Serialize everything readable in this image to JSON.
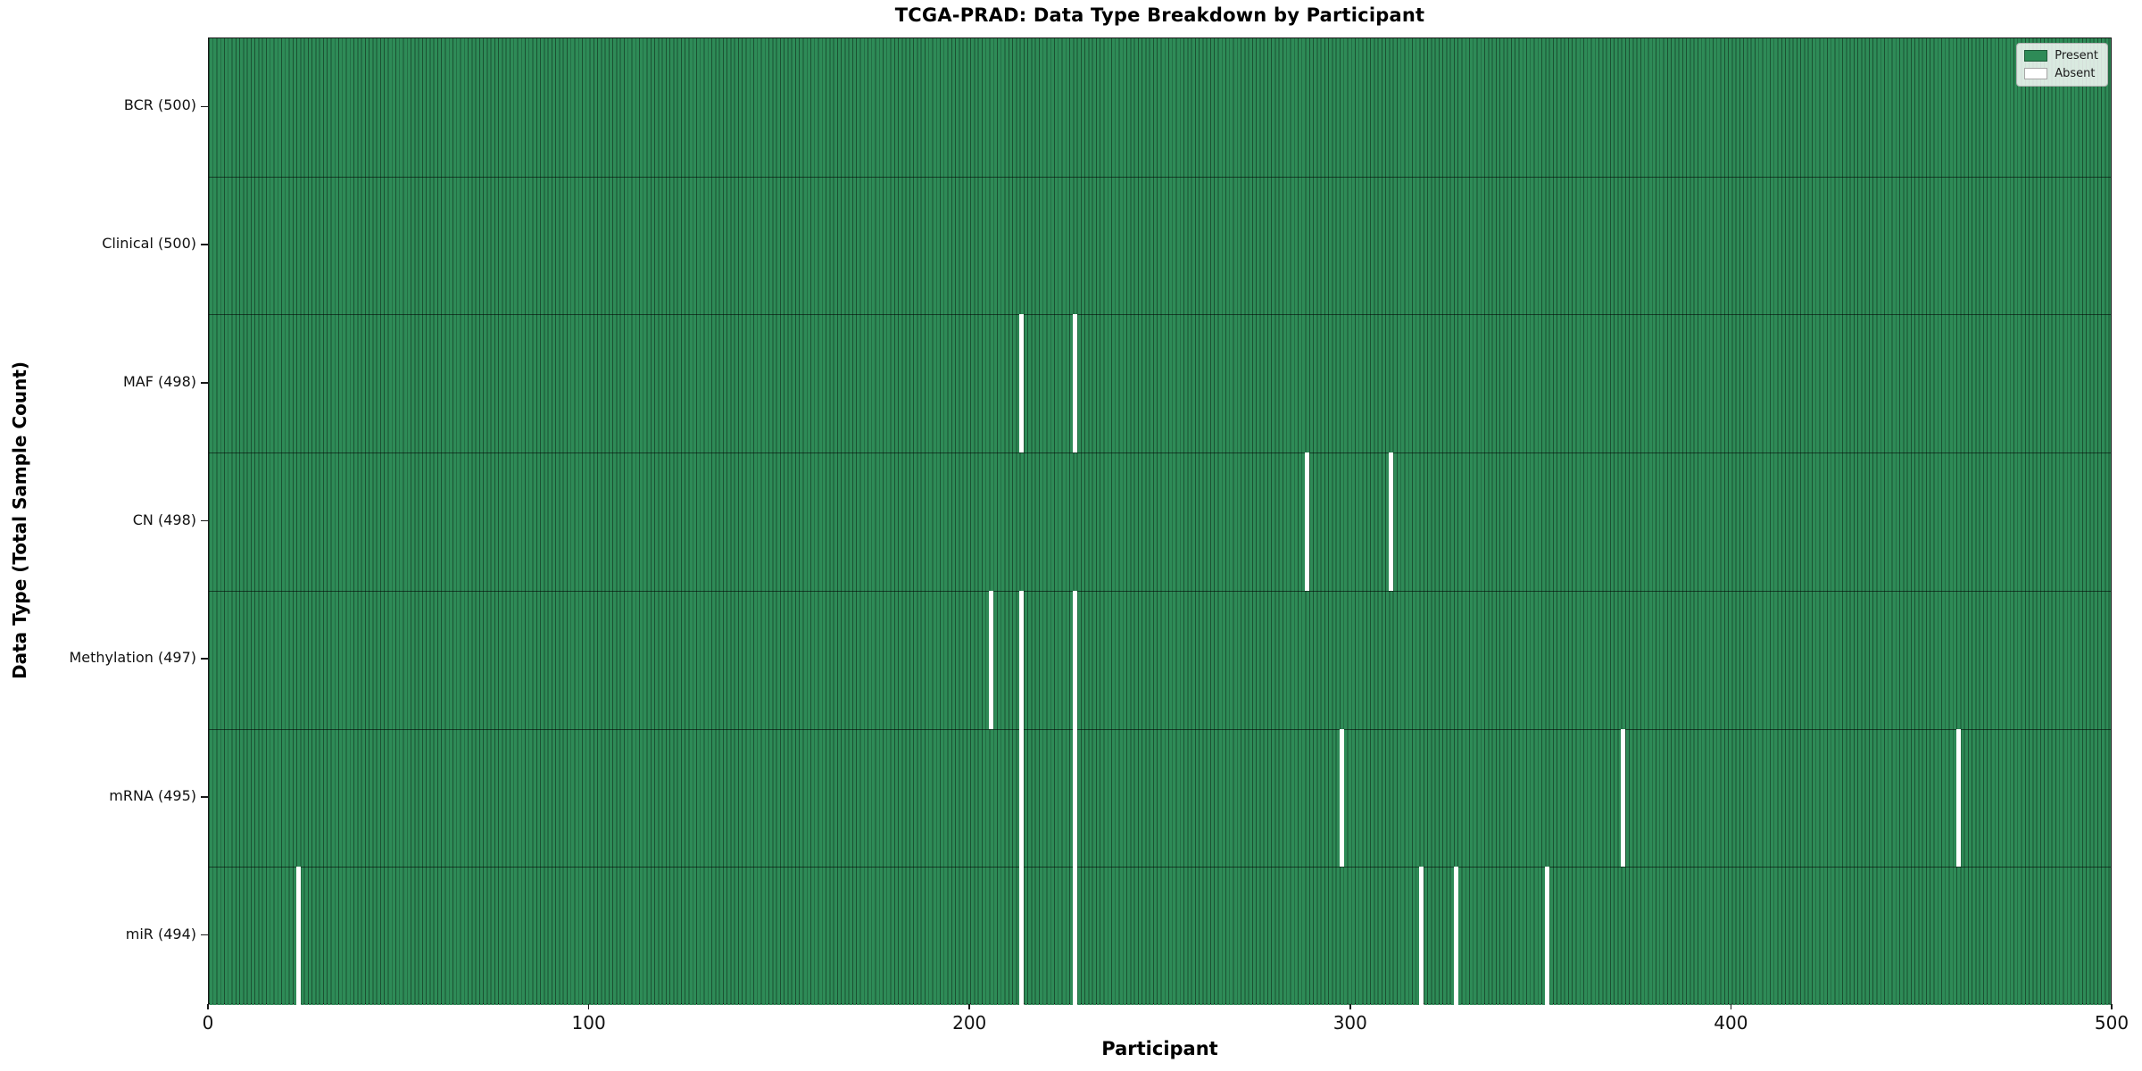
{
  "title": "TCGA-PRAD: Data Type Breakdown by Participant",
  "x_axis": {
    "label": "Participant",
    "range": [
      0,
      500
    ],
    "ticks": [
      0,
      100,
      200,
      300,
      400,
      500
    ]
  },
  "y_axis": {
    "label": "Data Type (Total Sample Count)"
  },
  "legend": {
    "entries": [
      {
        "label": "Present",
        "color": "#2e8b57"
      },
      {
        "label": "Absent",
        "color": "#ffffff"
      }
    ],
    "position": "upper-right"
  },
  "chart_data": {
    "type": "heatmap",
    "title": "TCGA-PRAD: Data Type Breakdown by Participant",
    "xlabel": "Participant",
    "ylabel": "Data Type (Total Sample Count)",
    "x_range": [
      0,
      500
    ],
    "x_ticks": [
      0,
      100,
      200,
      300,
      400,
      500
    ],
    "n_participants": 500,
    "grid": false,
    "legend_position": "upper right",
    "colors": {
      "present": "#2e8b57",
      "absent": "#ffffff",
      "bar_edge": "rgba(0,0,0,0.42)",
      "row_separator": "rgba(0,0,0,0.55)"
    },
    "rows": [
      {
        "label": "BCR",
        "total": 500,
        "absent_participants": []
      },
      {
        "label": "Clinical",
        "total": 500,
        "absent_participants": []
      },
      {
        "label": "MAF",
        "total": 498,
        "absent_participants": [
          213,
          227
        ]
      },
      {
        "label": "CN",
        "total": 498,
        "absent_participants": [
          288,
          310
        ]
      },
      {
        "label": "Methylation",
        "total": 497,
        "absent_participants": [
          205,
          213,
          227
        ]
      },
      {
        "label": "mRNA",
        "total": 495,
        "absent_participants": [
          213,
          227,
          297,
          371,
          459
        ]
      },
      {
        "label": "miR",
        "total": 494,
        "absent_participants": [
          23,
          213,
          227,
          318,
          327,
          351
        ]
      }
    ]
  }
}
